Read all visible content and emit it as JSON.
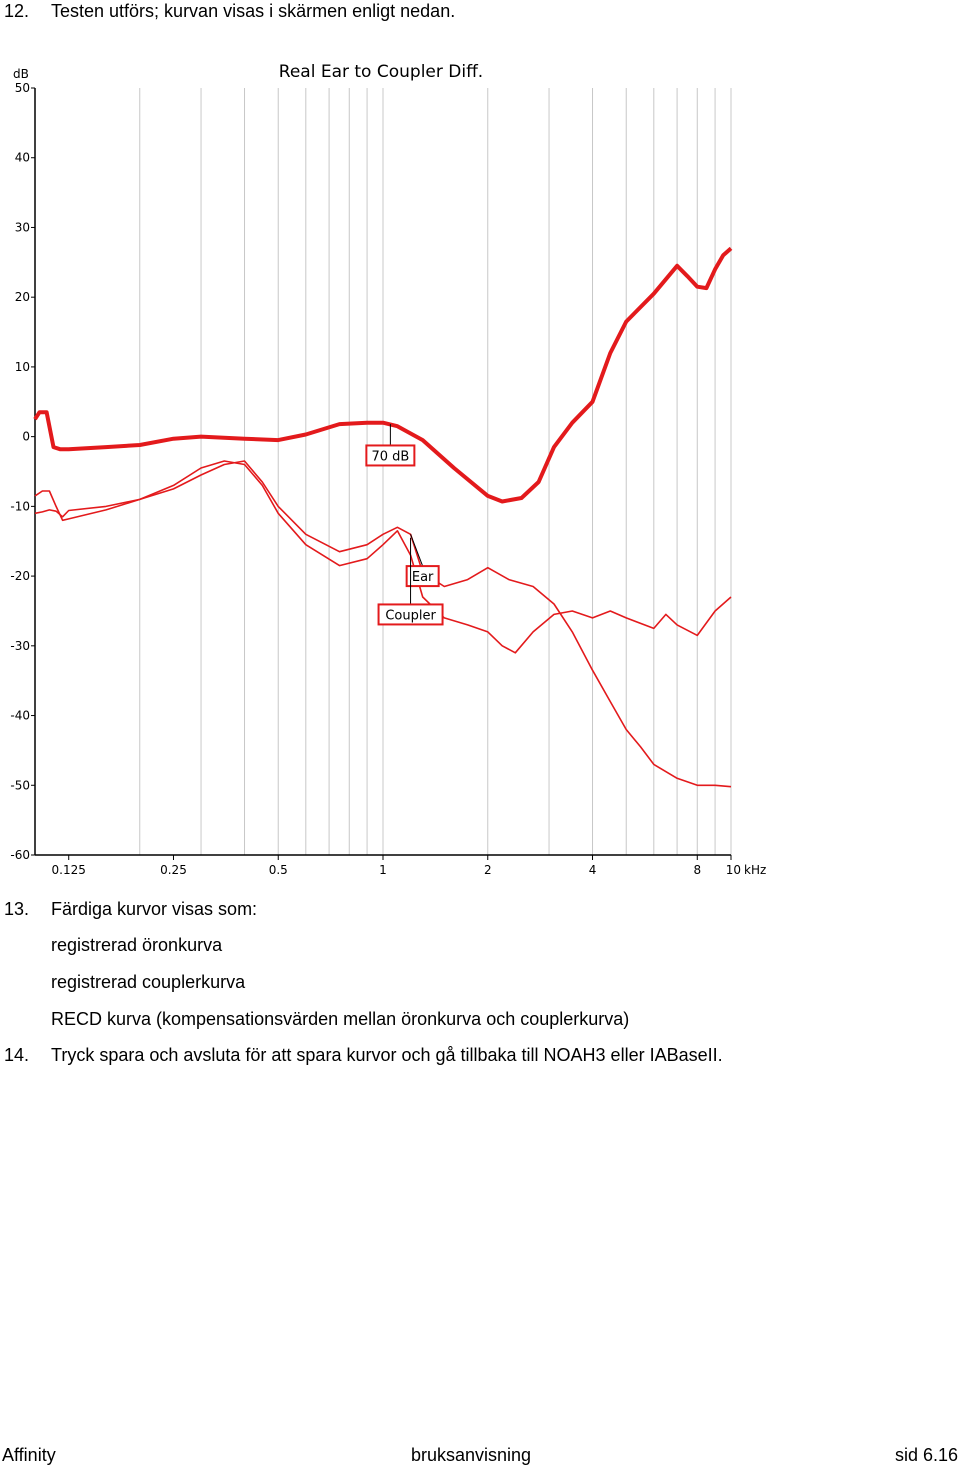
{
  "steps": {
    "s12": {
      "num": "12.",
      "text": "Testen utförs; kurvan visas i skärmen enligt nedan."
    },
    "s13": {
      "num": "13.",
      "text": "Färdiga kurvor visas som:"
    },
    "s13_items": [
      "registrerad öronkurva",
      "registrerad couplerkurva",
      "RECD kurva (kompensationsvärden mellan öronkurva och couplerkurva)"
    ],
    "s14": {
      "num": "14.",
      "text": "Tryck spara och avsluta för att spara kurvor och gå tillbaka till NOAH3 eller IABaseII."
    }
  },
  "footer": {
    "left": "Affinity",
    "center": "bruksanvisning",
    "right": "sid 6.16"
  },
  "colors": {
    "curve": "#e31a1c",
    "grid": "#c8c8c8",
    "axis": "#000000"
  },
  "chart_data": {
    "type": "line",
    "title": "Real Ear to Coupler Diff.",
    "ylabel": "dB",
    "xunit": "kHz",
    "x_scale": "log",
    "ylim": [
      -60,
      50
    ],
    "xlim": [
      0.1,
      10
    ],
    "yticks": [
      "50",
      "40",
      "30",
      "20",
      "10",
      "0",
      "-10",
      "-20",
      "-30",
      "-40",
      "-50",
      "-60"
    ],
    "xticks": [
      "0.125",
      "0.25",
      "0.5",
      "1",
      "2",
      "4",
      "8",
      "10"
    ],
    "grid": true,
    "annotations": [
      "70 dB",
      "Ear",
      "Coupler"
    ],
    "series": [
      {
        "x": [
          0.1,
          0.103,
          0.108,
          0.113,
          0.118,
          0.125,
          0.16,
          0.2,
          0.25,
          0.3,
          0.4,
          0.5,
          0.6,
          0.75,
          0.9,
          1.0,
          1.1,
          1.3,
          1.6,
          2.0,
          2.2,
          2.5,
          2.8,
          3.1,
          3.5,
          4.0,
          4.5,
          5.0,
          6.0,
          7.0,
          7.5,
          8.0,
          8.5,
          9.0,
          9.5,
          10.0
        ],
        "y": [
          2.5,
          3.5,
          3.5,
          -1.5,
          -1.8,
          -1.8,
          -1.5,
          -1.2,
          -0.3,
          0,
          -0.3,
          -0.5,
          0.3,
          1.8,
          2.0,
          2.0,
          1.5,
          -0.5,
          -4.5,
          -8.5,
          -9.3,
          -8.8,
          -6.5,
          -1.5,
          2.0,
          5.0,
          12.0,
          16.5,
          20.5,
          24.5,
          23.0,
          21.5,
          21.3,
          24.0,
          26.0,
          27.0
        ]
      },
      {
        "x": [
          0.1,
          0.105,
          0.11,
          0.115,
          0.12,
          0.125,
          0.16,
          0.2,
          0.25,
          0.3,
          0.35,
          0.4,
          0.45,
          0.5,
          0.6,
          0.75,
          0.9,
          1.0,
          1.1,
          1.2,
          1.3,
          1.5,
          1.75,
          2.0,
          2.2,
          2.4,
          2.7,
          3.1,
          3.5,
          4.0,
          4.5,
          5.0,
          6.0,
          6.5,
          7.0,
          8.0,
          9.0,
          10.0
        ],
        "y": [
          -11,
          -10.8,
          -10.5,
          -10.7,
          -11.5,
          -10.6,
          -10.0,
          -9.0,
          -7.0,
          -4.5,
          -3.5,
          -4.0,
          -7.0,
          -11.0,
          -15.5,
          -18.5,
          -17.5,
          -15.5,
          -13.5,
          -17.0,
          -23.0,
          -26.0,
          -27.0,
          -28.0,
          -30.0,
          -31.0,
          -28.0,
          -25.5,
          -25.0,
          -26.0,
          -25.0,
          -26.0,
          -27.5,
          -25.5,
          -27.0,
          -28.5,
          -25.0,
          -23.0
        ]
      },
      {
        "x": [
          0.1,
          0.105,
          0.11,
          0.115,
          0.12,
          0.125,
          0.16,
          0.2,
          0.25,
          0.3,
          0.35,
          0.4,
          0.45,
          0.5,
          0.6,
          0.75,
          0.9,
          1.0,
          1.1,
          1.2,
          1.3,
          1.5,
          1.75,
          2.0,
          2.3,
          2.7,
          3.1,
          3.5,
          4.0,
          4.5,
          5.0,
          5.5,
          6.0,
          7.0,
          8.0,
          9.0,
          10.0
        ],
        "y": [
          -8.5,
          -7.8,
          -7.8,
          -10.0,
          -12.0,
          -11.8,
          -10.5,
          -9.0,
          -7.5,
          -5.5,
          -4.0,
          -3.5,
          -6.5,
          -10.0,
          -14.0,
          -16.5,
          -15.5,
          -14.0,
          -13.0,
          -14.0,
          -19.5,
          -21.5,
          -20.5,
          -18.8,
          -20.5,
          -21.5,
          -24.0,
          -28.0,
          -33.5,
          -38.0,
          -42.0,
          -44.5,
          -47.0,
          -49.0,
          -50.0,
          -50.0,
          -50.2
        ]
      }
    ]
  }
}
